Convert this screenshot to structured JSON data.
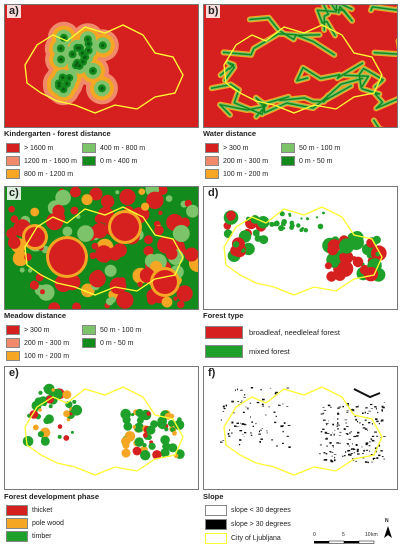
{
  "panels": {
    "a": {
      "label": "a)",
      "title": "Kindergarten - forest distance"
    },
    "b": {
      "label": "b)",
      "title": "Water distance"
    },
    "c": {
      "label": "c)",
      "title": "Meadow distance"
    },
    "d": {
      "label": "d)",
      "title": "Forest type"
    },
    "e": {
      "label": "e)",
      "title": "Forest development phase"
    },
    "f": {
      "label": "f)",
      "title": "Slope"
    }
  },
  "legend_a": [
    {
      "label": "> 1600 m",
      "color": "#d62020"
    },
    {
      "label": "400 m - 800 m",
      "color": "#7cc36a"
    },
    {
      "label": "1200 m - 1600 m",
      "color": "#f08a6a"
    },
    {
      "label": "0 m - 400 m",
      "color": "#138a1c"
    },
    {
      "label": "800 m - 1200 m",
      "color": "#f5a623"
    }
  ],
  "legend_b": [
    {
      "label": "> 300 m",
      "color": "#d62020"
    },
    {
      "label": "50 m - 100 m",
      "color": "#7cc36a"
    },
    {
      "label": "200 m - 300 m",
      "color": "#f08a6a"
    },
    {
      "label": "0 m - 50 m",
      "color": "#138a1c"
    },
    {
      "label": "100 m - 200 m",
      "color": "#f5a623"
    }
  ],
  "legend_c": [
    {
      "label": "> 300 m",
      "color": "#d62020"
    },
    {
      "label": "50 m - 100 m",
      "color": "#7cc36a"
    },
    {
      "label": "200 m - 300 m",
      "color": "#f08a6a"
    },
    {
      "label": "0 m - 50 m",
      "color": "#138a1c"
    },
    {
      "label": "100 m - 200 m",
      "color": "#f5a623"
    }
  ],
  "legend_d": [
    {
      "label": "broadleaf, needleleaf forest",
      "color": "#d62020"
    },
    {
      "label": "mixed forest",
      "color": "#1fa02a"
    }
  ],
  "legend_e": [
    {
      "label": "thicket",
      "color": "#d62020"
    },
    {
      "label": "pole wood",
      "color": "#f5a623"
    },
    {
      "label": "timber",
      "color": "#1fa02a"
    }
  ],
  "legend_f": [
    {
      "label": "slope < 30 degrees",
      "color": "#ffffff"
    },
    {
      "label": "slope > 30 degrees",
      "color": "#000000"
    },
    {
      "label": "City of Ljubljana",
      "color": "#ffff33"
    }
  ],
  "scale": {
    "ticks": [
      "0",
      "5",
      "10"
    ],
    "unit": "km",
    "north": "N"
  },
  "colors": {
    "red": "#d62020",
    "boundary": "#ffff33",
    "green": "#1fa02a"
  }
}
